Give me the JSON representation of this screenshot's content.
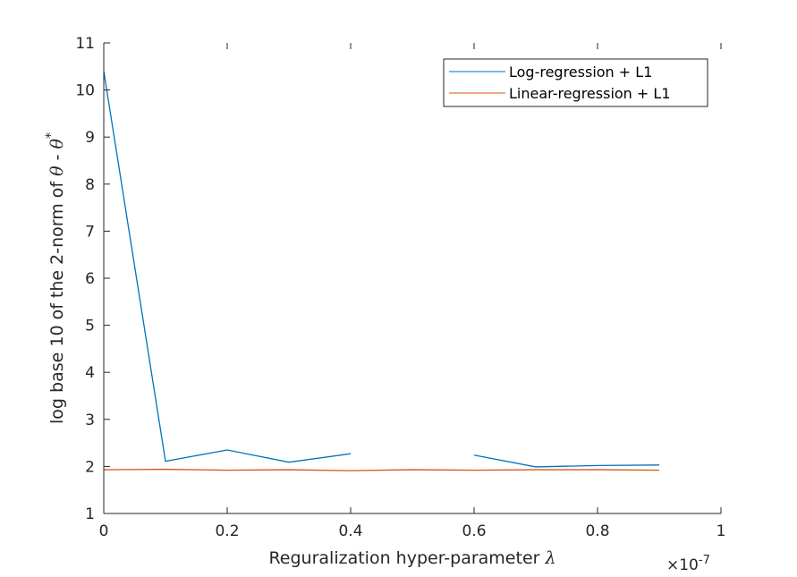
{
  "chart_data": {
    "type": "line",
    "xlabel": "Reguralization hyper-parameter",
    "xlabel_symbol": "λ",
    "x_multiplier_base": "×10",
    "x_multiplier_exponent": "-7",
    "ylabel": "log base 10 of the 2-norm of",
    "ylabel_symbol_1": "θ",
    "ylabel_separator": " - ",
    "ylabel_symbol_2": "θ",
    "ylabel_superscript": "*",
    "xlim": [
      0,
      1
    ],
    "ylim": [
      1,
      11
    ],
    "xticks": [
      0,
      0.2,
      0.4,
      0.6,
      0.8,
      1
    ],
    "xtick_labels": [
      "0",
      "0.2",
      "0.4",
      "0.6",
      "0.8",
      "1"
    ],
    "yticks": [
      1,
      2,
      3,
      4,
      5,
      6,
      7,
      8,
      9,
      10,
      11
    ],
    "ytick_labels": [
      "1",
      "2",
      "3",
      "4",
      "5",
      "6",
      "7",
      "8",
      "9",
      "10",
      "11"
    ],
    "grid": false,
    "legend_position": "top-right",
    "series": [
      {
        "name": "Log-regression + L1",
        "color": "#0072BD",
        "x": [
          0,
          0.1,
          0.2,
          0.3,
          0.4,
          0.5,
          0.6,
          0.7,
          0.8,
          0.9
        ],
        "values": [
          10.4,
          2.11,
          2.35,
          2.09,
          2.27,
          null,
          2.24,
          1.99,
          2.02,
          2.03
        ]
      },
      {
        "name": "Linear-regression + L1",
        "color": "#D95319",
        "x": [
          0,
          0.1,
          0.2,
          0.3,
          0.4,
          0.5,
          0.6,
          0.7,
          0.8,
          0.9
        ],
        "values": [
          1.93,
          1.94,
          1.92,
          1.93,
          1.91,
          1.93,
          1.92,
          1.93,
          1.93,
          1.92
        ]
      }
    ]
  }
}
